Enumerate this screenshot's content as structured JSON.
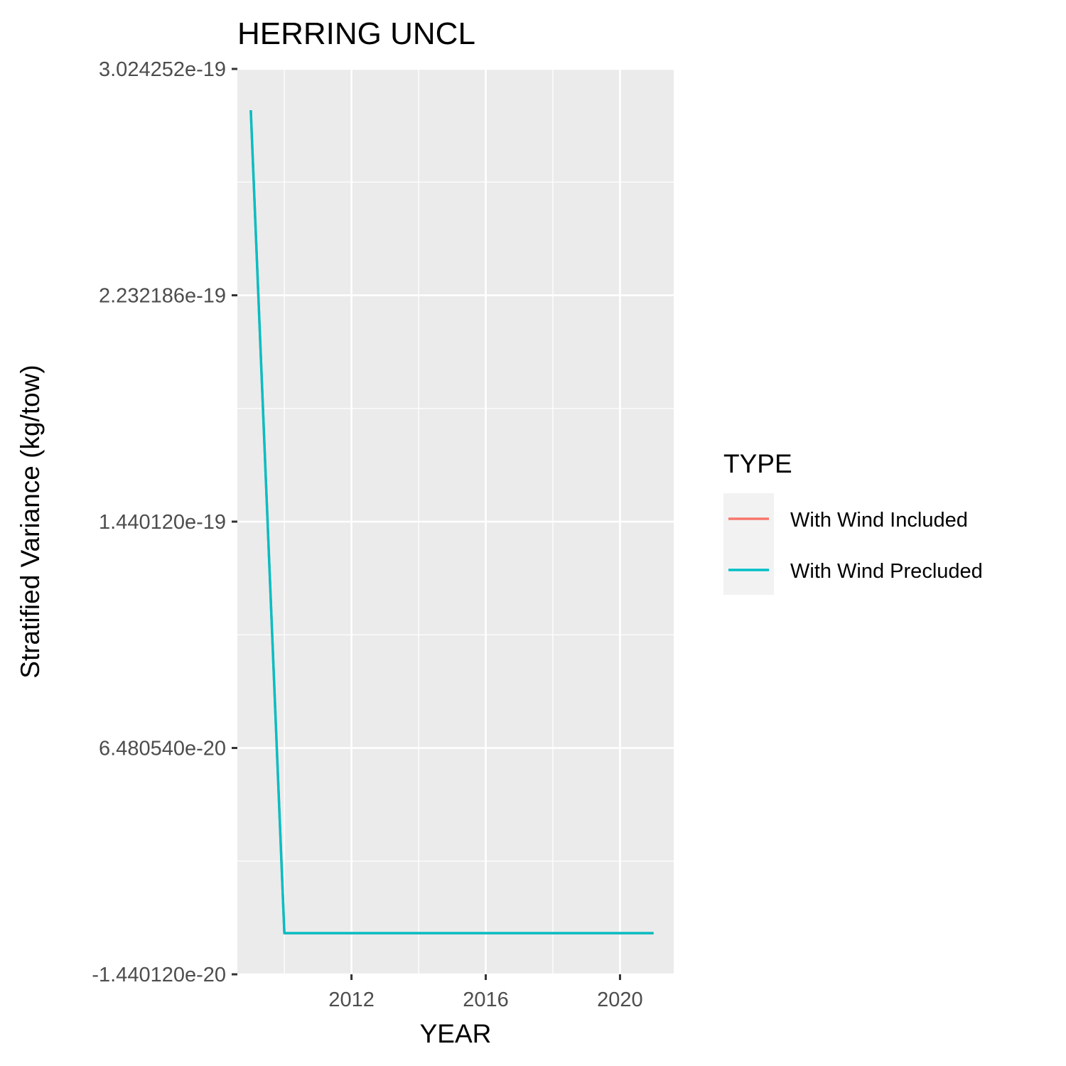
{
  "chart_data": {
    "type": "line",
    "title": "HERRING UNCL",
    "xlabel": "YEAR",
    "ylabel": "Stratified Variance (kg/tow)",
    "xlim": [
      2008.6,
      2021.6
    ],
    "ylim": [
      -1.44012e-20,
      3.024252e-19
    ],
    "x_ticks": [
      2012,
      2016,
      2020
    ],
    "x_tick_labels": [
      "2012",
      "2016",
      "2020"
    ],
    "y_ticks": [
      -1.44012e-20,
      6.48054e-20,
      1.44012e-19,
      2.232186e-19,
      3.024252e-19
    ],
    "y_tick_labels": [
      "-1.440120e-20",
      "6.480540e-20",
      "1.440120e-19",
      "2.232186e-19",
      "3.024252e-19"
    ],
    "grid": true,
    "legend": {
      "title": "TYPE",
      "placement": "right",
      "entries": [
        {
          "label": "With Wind Included",
          "color": "#F8766D"
        },
        {
          "label": "With Wind Precluded",
          "color": "#00BFC4"
        }
      ]
    },
    "series": [
      {
        "name": "With Wind Included",
        "color": "#F8766D",
        "x": [
          2009,
          2010,
          2011,
          2012,
          2013,
          2014,
          2015,
          2016,
          2017,
          2018,
          2019,
          2020,
          2021
        ],
        "y": [
          2.88e-19,
          0,
          0,
          0,
          0,
          0,
          0,
          0,
          0,
          0,
          0,
          0,
          0
        ]
      },
      {
        "name": "With Wind Precluded",
        "color": "#00BFC4",
        "x": [
          2009,
          2010,
          2011,
          2012,
          2013,
          2014,
          2015,
          2016,
          2017,
          2018,
          2019,
          2020,
          2021
        ],
        "y": [
          2.88e-19,
          0,
          0,
          0,
          0,
          0,
          0,
          0,
          0,
          0,
          0,
          0,
          0
        ]
      }
    ]
  },
  "colors": {
    "panel_background": "#EBEBEB",
    "grid_line": "#FFFFFF",
    "legend_key_background": "#F2F2F2"
  }
}
